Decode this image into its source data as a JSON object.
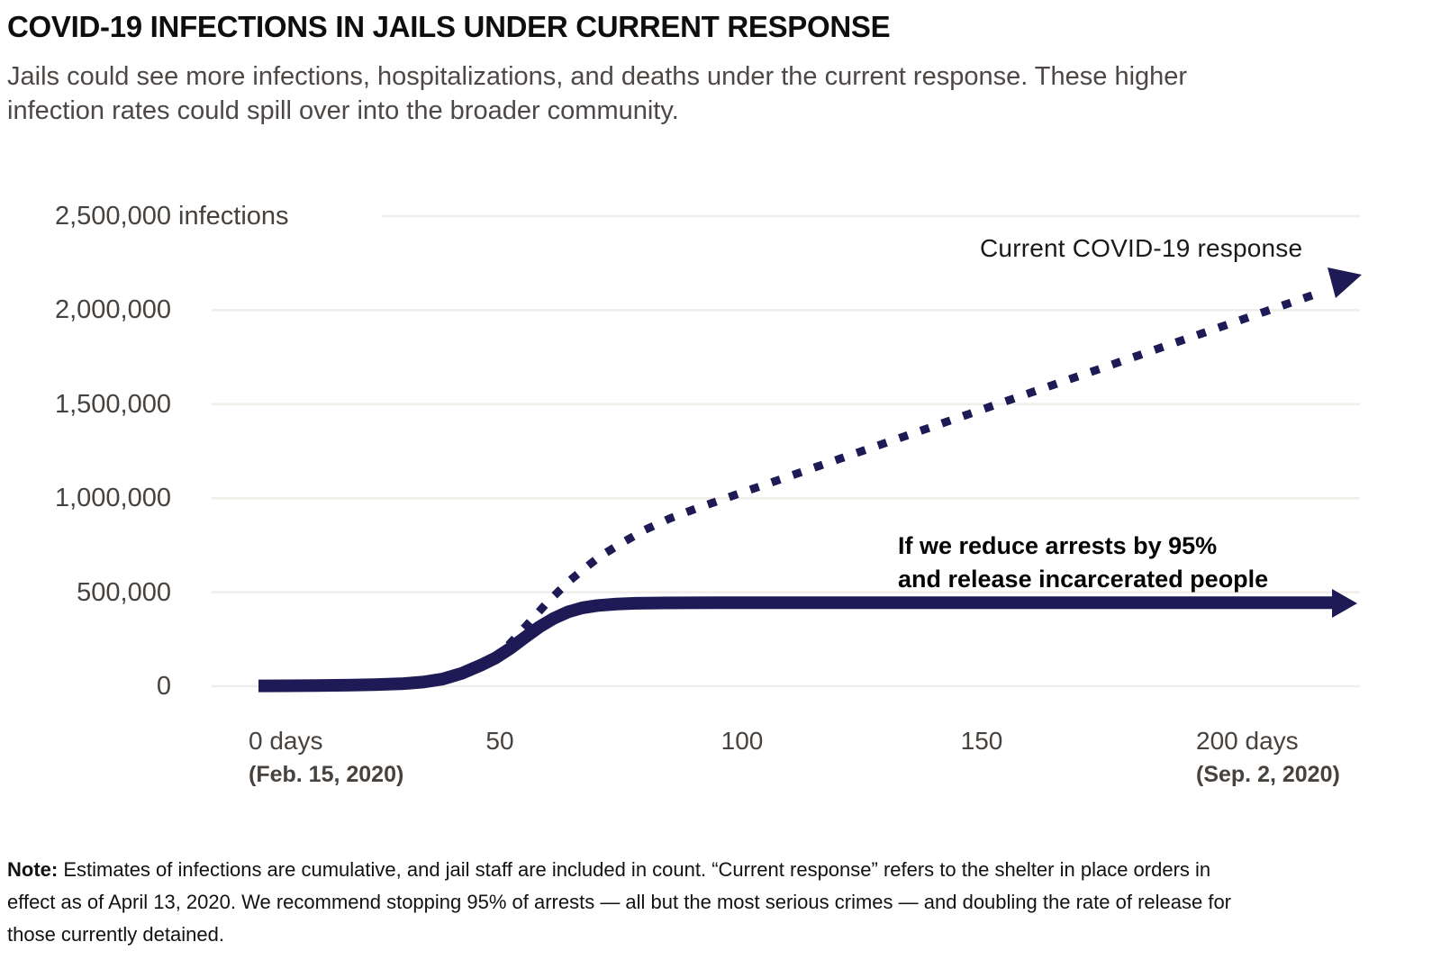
{
  "header": {
    "title": "COVID-19 INFECTIONS IN JAILS UNDER CURRENT RESPONSE",
    "subtitle_line1": "Jails could see more infections, hospitalizations, and deaths under the current response. These higher",
    "subtitle_line2": "infection rates could spill over into the broader community."
  },
  "colors": {
    "line_navy": "#1e1a55",
    "gridline": "#f1eeea",
    "axis_text": "#48423e",
    "title_text": "#0f0e0d",
    "subtitle_text": "#4d4846"
  },
  "chart_data": {
    "type": "line",
    "title": "COVID-19 infections in jails under current response",
    "xlabel": "days since Feb. 15, 2020",
    "ylabel": "infections",
    "xlim": [
      0,
      230
    ],
    "ylim": [
      0,
      2500000
    ],
    "grid": "horizontal",
    "y_ticks": [
      {
        "label": "2,500,000",
        "suffix": "infections",
        "value": 2500000
      },
      {
        "label": "2,000,000",
        "value": 2000000
      },
      {
        "label": "1,500,000",
        "value": 1500000
      },
      {
        "label": "1,000,000",
        "value": 1000000
      },
      {
        "label": "500,000",
        "value": 500000
      },
      {
        "label": "0",
        "value": 0
      }
    ],
    "x_ticks": [
      {
        "label": "0 days",
        "sublabel": "(Feb. 15, 2020)",
        "day": 0
      },
      {
        "label": "50",
        "day": 50
      },
      {
        "label": "100",
        "day": 100
      },
      {
        "label": "150",
        "day": 150
      },
      {
        "label": "200 days",
        "sublabel": "(Sep. 2, 2020)",
        "day": 200
      }
    ],
    "series": [
      {
        "name": "Current COVID-19 response",
        "style": "dotted",
        "ends_with": "arrowhead",
        "points": [
          [
            49,
            150000
          ],
          [
            51,
            200000
          ],
          [
            53,
            255000
          ],
          [
            55,
            312000
          ],
          [
            57,
            368000
          ],
          [
            59,
            425000
          ],
          [
            61,
            478000
          ],
          [
            63,
            528000
          ],
          [
            65,
            575000
          ],
          [
            67,
            618000
          ],
          [
            69,
            658000
          ],
          [
            72,
            712000
          ],
          [
            75,
            760000
          ],
          [
            80,
            833000
          ],
          [
            85,
            892000
          ],
          [
            90,
            940000
          ],
          [
            95,
            985000
          ],
          [
            100,
            1030000
          ],
          [
            110,
            1119000
          ],
          [
            120,
            1208000
          ],
          [
            130,
            1297000
          ],
          [
            140,
            1386000
          ],
          [
            150,
            1475000
          ],
          [
            160,
            1564000
          ],
          [
            170,
            1653000
          ],
          [
            180,
            1742000
          ],
          [
            190,
            1831000
          ],
          [
            200,
            1920000
          ],
          [
            210,
            2009000
          ],
          [
            218,
            2080000
          ],
          [
            227,
            2155000
          ]
        ]
      },
      {
        "name": "If we reduce arrests by 95% and release incarcerated people",
        "style": "solid",
        "ends_with": "arrowhead",
        "points": [
          [
            0,
            2000
          ],
          [
            6,
            2600
          ],
          [
            12,
            3600
          ],
          [
            18,
            5200
          ],
          [
            24,
            8000
          ],
          [
            30,
            14000
          ],
          [
            34,
            22000
          ],
          [
            38,
            38000
          ],
          [
            42,
            68000
          ],
          [
            46,
            112000
          ],
          [
            49,
            150000
          ],
          [
            52,
            200000
          ],
          [
            55,
            258000
          ],
          [
            58,
            314000
          ],
          [
            61,
            360000
          ],
          [
            64,
            395000
          ],
          [
            67,
            417000
          ],
          [
            70,
            429000
          ],
          [
            74,
            437000
          ],
          [
            78,
            441000
          ],
          [
            84,
            443000
          ],
          [
            95,
            444000
          ],
          [
            110,
            444000
          ],
          [
            140,
            444000
          ],
          [
            170,
            444000
          ],
          [
            200,
            444000
          ],
          [
            222,
            444000
          ]
        ]
      }
    ]
  },
  "annotations": {
    "current_label": "Current COVID-19 response",
    "reduce_line1": "If we reduce arrests by 95%",
    "reduce_line2": "and release incarcerated people"
  },
  "note": {
    "label": "Note:",
    "line1": "Estimates of infections are cumulative, and jail staff are included in count. “Current response” refers to the shelter in place orders in",
    "line2": "effect as of April 13, 2020. We recommend stopping 95% of arrests — all but the most serious crimes — and doubling the rate of release for",
    "line3": "those currently detained."
  }
}
